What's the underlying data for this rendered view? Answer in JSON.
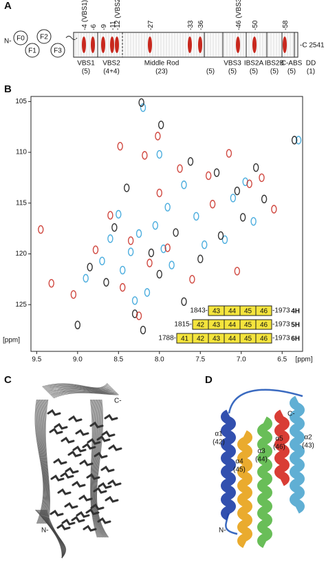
{
  "panel_a": {
    "label": "A",
    "n_term": "N-",
    "c_term": "-C 2541",
    "domains": [
      "F0",
      "F1",
      "F2",
      "F3"
    ],
    "sites": [
      -4,
      -6,
      -9,
      -11,
      -12,
      -27,
      -33,
      -36,
      -46,
      -50,
      -58
    ],
    "site_notes": [
      "(VBS1)",
      "(VBS2)",
      "(VBS3)"
    ],
    "regions": [
      {
        "name": "VBS1",
        "count": "(5)"
      },
      {
        "name": "VBS2",
        "count": "(4+4)"
      },
      {
        "name": "Middle Rod",
        "count": "(23)"
      },
      {
        "count": "(5)"
      },
      {
        "name": "VBS3",
        "count": "(5)"
      },
      {
        "name": "IBS2A",
        "count": "(5)"
      },
      {
        "name": "IBS2B",
        "count": "(5)"
      },
      {
        "name": "C-ABS",
        "count": "(5)"
      },
      {
        "name": "DD",
        "count": "(1)"
      }
    ]
  },
  "chart_data": {
    "type": "scatter",
    "label": "B",
    "xlim": [
      9.57,
      6.25
    ],
    "ylim": [
      104.5,
      129.6
    ],
    "xticks": [
      9.5,
      {
        "value": 9,
        "label": "9.0"
      },
      8.5,
      {
        "value": 8,
        "label": "8.0"
      },
      7.5,
      {
        "value": 7,
        "label": "7.0"
      },
      6.5
    ],
    "yticks": [
      105,
      110,
      115,
      120,
      125
    ],
    "x_label": "[ppm]",
    "y_label": "[ppm]",
    "series": [
      {
        "name": "4H",
        "color": "#2c9fd8",
        "x": [
          8.2,
          8.05,
          7.9,
          8.35,
          8.6,
          8.45,
          7.7,
          7.45,
          7.2,
          6.95,
          8.7,
          8.9,
          8.15,
          7.85,
          8.0,
          7.55,
          8.3,
          7.1,
          6.85,
          8.5,
          7.95,
          8.25,
          6.3
        ],
        "values": [
          105.6,
          117.2,
          115.4,
          119.8,
          118.5,
          121.6,
          113.2,
          119.1,
          118.6,
          112.9,
          120.7,
          122.4,
          123.8,
          121.1,
          110.2,
          116.3,
          124.6,
          114.5,
          116.8,
          116.1,
          119.5,
          118.0,
          108.8
        ]
      },
      {
        "name": "5H",
        "color": "#111111",
        "x": [
          9.0,
          8.22,
          7.98,
          7.62,
          7.3,
          7.05,
          6.82,
          6.72,
          8.4,
          8.55,
          8.1,
          7.8,
          7.5,
          8.65,
          8.85,
          7.25,
          6.98,
          8.3,
          8.0,
          7.7,
          8.2,
          6.35
        ],
        "values": [
          127.0,
          105.1,
          107.3,
          110.9,
          112.0,
          113.8,
          111.5,
          114.6,
          113.5,
          117.4,
          119.9,
          117.9,
          120.5,
          122.8,
          121.3,
          118.2,
          116.4,
          125.9,
          122.0,
          124.7,
          127.5,
          108.8
        ]
      },
      {
        "name": "6H",
        "color": "#c8281e",
        "x": [
          9.45,
          9.32,
          8.48,
          8.18,
          8.02,
          7.75,
          7.4,
          7.15,
          6.9,
          6.75,
          8.6,
          8.35,
          8.12,
          7.9,
          7.6,
          8.78,
          9.05,
          8.25,
          7.35,
          6.6,
          8.45,
          7.05,
          8.0
        ],
        "values": [
          117.6,
          122.9,
          109.4,
          110.3,
          108.4,
          111.6,
          112.3,
          110.1,
          113.1,
          112.5,
          116.2,
          118.7,
          120.9,
          119.4,
          122.5,
          119.6,
          124.0,
          126.1,
          115.1,
          115.6,
          123.3,
          121.7,
          114.0
        ]
      }
    ],
    "constructs": [
      {
        "start": "1843-",
        "boxes": [
          43,
          44,
          45,
          46
        ],
        "end": "-1973"
      },
      {
        "start": "1815-",
        "boxes": [
          42,
          43,
          44,
          45,
          46
        ],
        "end": "-1973"
      },
      {
        "start": "1788-",
        "boxes": [
          41,
          42,
          43,
          44,
          45,
          46
        ],
        "end": "-1973"
      }
    ]
  },
  "panel_c": {
    "label": "C",
    "c_term": "C-",
    "n_term": "N-"
  },
  "panel_d": {
    "label": "D",
    "c_term": "C-",
    "n_term": "N-",
    "helices": [
      {
        "name": "α1",
        "num": "(42)"
      },
      {
        "name": "α4",
        "num": "(45)"
      },
      {
        "name": "α3",
        "num": "(44)"
      },
      {
        "name": "α5",
        "num": "(46)"
      },
      {
        "name": "α2",
        "num": "(43)"
      }
    ]
  }
}
